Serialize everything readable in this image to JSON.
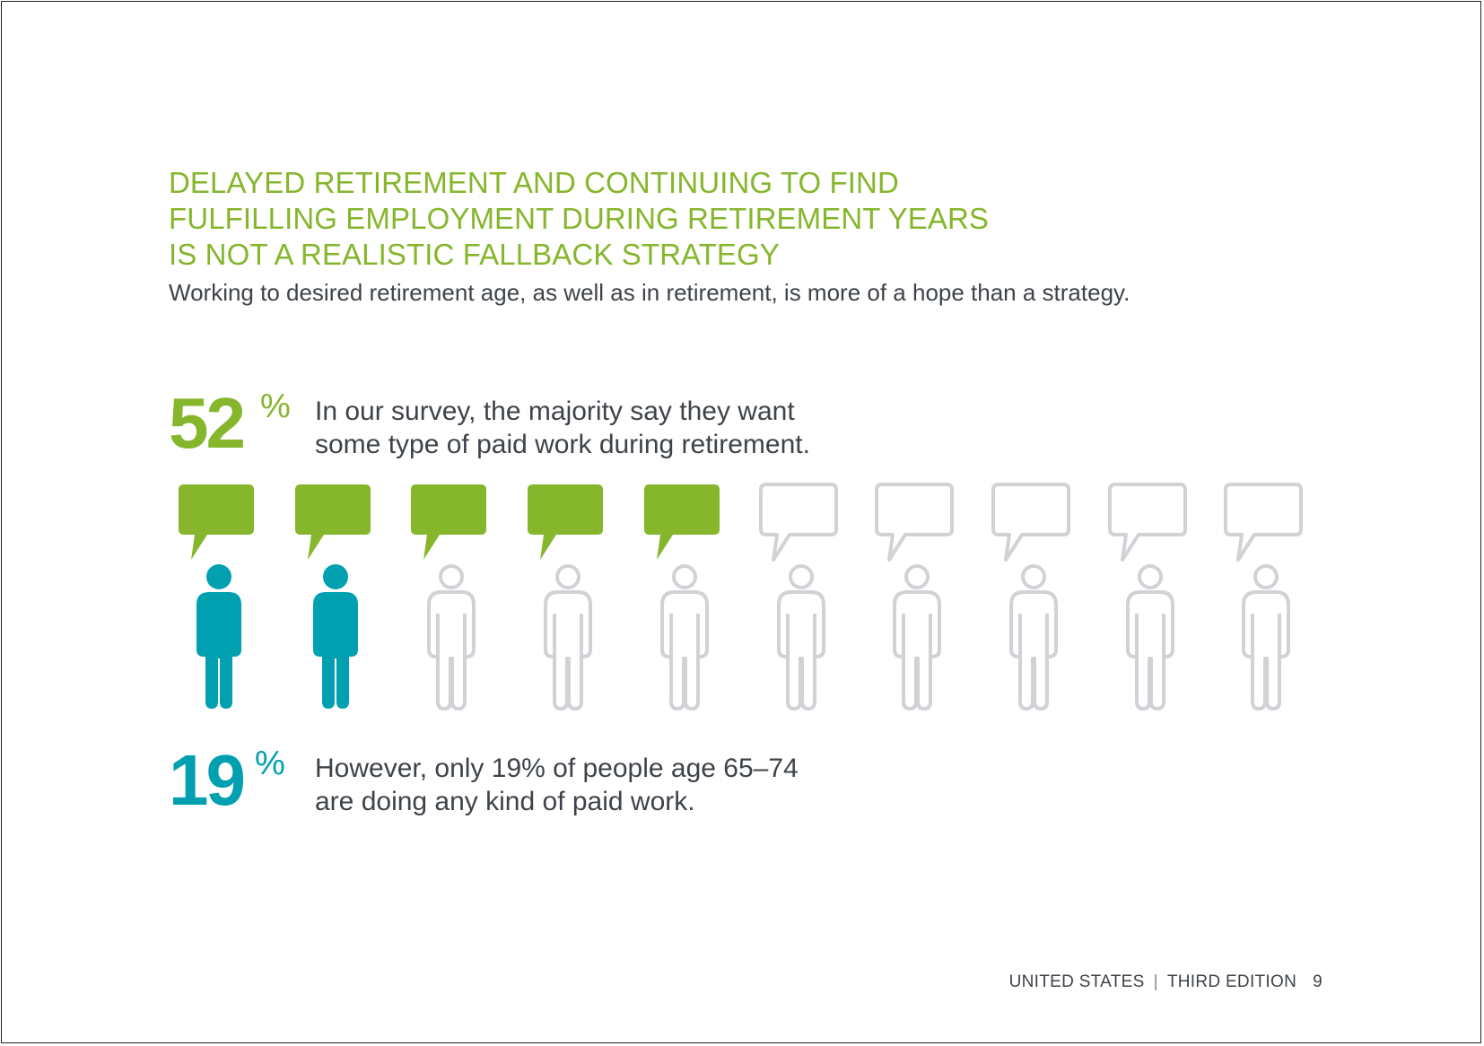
{
  "heading": {
    "lines": [
      "DELAYED RETIREMENT AND CONTINUING TO FIND",
      "FULFILLING EMPLOYMENT DURING RETIREMENT YEARS",
      "IS NOT A REALISTIC FALLBACK STRATEGY"
    ]
  },
  "subtitle": "Working to desired retirement age, as well as in retirement, is more of a hope than a strategy.",
  "stats": [
    {
      "number": "52",
      "percent_sign": "%",
      "lines": [
        "In our survey, the majority say they want",
        "some type of paid work during retirement."
      ],
      "color": "#85b62c"
    },
    {
      "number": "19",
      "percent_sign": "%",
      "lines": [
        "However, only 19% of people age 65–74",
        "are doing any kind of paid work."
      ],
      "color": "#00a0b0"
    }
  ],
  "pictogram": {
    "total_figures": 10,
    "bubbles_filled": 5,
    "people_filled": 2,
    "bubble_color": "#85b62c",
    "person_color": "#00a0b0",
    "outline_color": "#d0d2d6"
  },
  "footer": {
    "country": "UNITED STATES",
    "edition": "THIRD EDITION",
    "page": "9"
  }
}
